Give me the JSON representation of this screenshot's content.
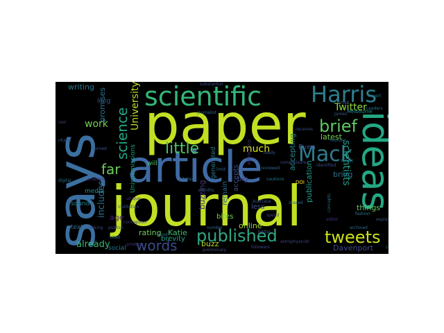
{
  "wordcloud": {
    "words": [
      {
        "text": "paper",
        "color": "#c2df23"
      },
      {
        "text": "says",
        "color": "#3b6fa0"
      },
      {
        "text": "journal",
        "color": "#c2df23"
      },
      {
        "text": "article",
        "color": "#3f6aa5"
      },
      {
        "text": "ideas",
        "color": "#23a884"
      },
      {
        "text": "scientific",
        "color": "#34b679"
      },
      {
        "text": "Harris",
        "color": "#2c7f8e"
      },
      {
        "text": "Mack",
        "color": "#2f7b8d"
      },
      {
        "text": "published",
        "color": "#2fa784"
      },
      {
        "text": "tweets",
        "color": "#cde11d"
      },
      {
        "text": "brief",
        "color": "#5ec962"
      },
      {
        "text": "little",
        "color": "#4fc369"
      },
      {
        "text": "words",
        "color": "#3a4b8b"
      },
      {
        "text": "science",
        "color": "#22a785"
      },
      {
        "text": "far",
        "color": "#6ccd5a"
      },
      {
        "text": "Twitter",
        "color": "#8fd744"
      },
      {
        "text": "scientists",
        "color": "#1f9f88"
      },
      {
        "text": "University",
        "color": "#b8de29"
      },
      {
        "text": "much",
        "color": "#d8e219"
      },
      {
        "text": "work",
        "color": "#74d055"
      },
      {
        "text": "promises",
        "color": "#2c728e"
      },
      {
        "text": "includes",
        "color": "#2d708e"
      },
      {
        "text": "already",
        "color": "#35b779"
      },
      {
        "text": "rating",
        "color": "#6ece58"
      },
      {
        "text": "Katie",
        "color": "#42be71"
      },
      {
        "text": "writing",
        "color": "#2a788e"
      },
      {
        "text": "Davenport",
        "color": "#3e4a89"
      },
      {
        "text": "publication",
        "color": "#1e9b8a"
      },
      {
        "text": "things",
        "color": "#5ec962"
      },
      {
        "text": "accepting",
        "color": "#24868e"
      },
      {
        "text": "latest",
        "color": "#7ad151"
      },
      {
        "text": "Even",
        "color": "#3c4f8a"
      },
      {
        "text": "online",
        "color": "#a5db36"
      },
      {
        "text": "less",
        "color": "#39568c"
      },
      {
        "text": "bring",
        "color": "#2c718e"
      },
      {
        "text": "age",
        "color": "#482878"
      },
      {
        "text": "buzz",
        "color": "#b5de2b"
      },
      {
        "text": "brevity",
        "color": "#20a486"
      },
      {
        "text": "bites",
        "color": "#75d054"
      },
      {
        "text": "buzzing",
        "color": "#443983"
      },
      {
        "text": "remain",
        "color": "#2e6e8e"
      },
      {
        "text": "accepts",
        "color": "#3d4d8a"
      },
      {
        "text": "big",
        "color": "#414487"
      },
      {
        "text": "generated",
        "color": "#287d8e"
      },
      {
        "text": "social",
        "color": "#2a768e"
      },
      {
        "text": "texts",
        "color": "#2f6b8e"
      },
      {
        "text": "sound",
        "color": "#25858e"
      },
      {
        "text": "Unisubmissions",
        "color": "#1fa088"
      },
      {
        "text": "will",
        "color": "#4ac16d"
      },
      {
        "text": "media",
        "color": "#218e8d"
      },
      {
        "text": "long",
        "color": "#3b528b"
      },
      {
        "text": "astronomy",
        "color": "#472d7b"
      },
      {
        "text": "DOI",
        "color": "#fde725"
      },
      {
        "text": "Melbourne",
        "color": "#21918c"
      },
      {
        "text": "limit",
        "color": "#31688e"
      },
      {
        "text": "cautions",
        "color": "#2b758e"
      },
      {
        "text": "Good",
        "color": "#2d708e"
      },
      {
        "text": "followers",
        "color": "#3f4889"
      },
      {
        "text": "editor",
        "color": "#46337e"
      },
      {
        "text": "number",
        "color": "#33638d"
      },
      {
        "text": "real",
        "color": "#443a83"
      },
      {
        "text": "object",
        "color": "#3b518b"
      },
      {
        "text": "digital",
        "color": "#2e6f8e"
      },
      {
        "text": "publish",
        "color": "#3e4c8a"
      },
      {
        "text": "check",
        "color": "#31688e"
      },
      {
        "text": "archived",
        "color": "#2f6c8e"
      },
      {
        "text": "receives",
        "color": "#3b528b"
      },
      {
        "text": "concepts",
        "color": "#2e6d8e"
      },
      {
        "text": "unique",
        "color": "#453882"
      },
      {
        "text": "turned",
        "color": "#39568c"
      },
      {
        "text": "ranking",
        "color": "#3e4a89"
      },
      {
        "text": "cited",
        "color": "#2b748e"
      },
      {
        "text": "enables",
        "color": "#453781"
      },
      {
        "text": "spend",
        "color": "#424086"
      },
      {
        "text": "better",
        "color": "#38588c"
      },
      {
        "text": "latest",
        "color": "#26828e"
      },
      {
        "text": "chief",
        "color": "#3d4e8a"
      },
      {
        "text": "fashion",
        "color": "#2a778e"
      },
      {
        "text": "expert",
        "color": "#2d718e"
      },
      {
        "text": "months",
        "color": "#35608d"
      },
      {
        "text": "journalist",
        "color": "#2c728e"
      },
      {
        "text": "Australia",
        "color": "#3a548c"
      },
      {
        "text": "astrophysicist",
        "color": "#414287"
      },
      {
        "text": "preliminary",
        "color": "#3c4f8a"
      },
      {
        "text": "substantial",
        "color": "#3f4889"
      },
      {
        "text": "reviewed",
        "color": "#33638d"
      },
      {
        "text": "comparisons",
        "color": "#3d4e8a"
      },
      {
        "text": "ready",
        "color": "#38598c"
      },
      {
        "text": "James",
        "color": "#2a768e"
      },
      {
        "text": "founder",
        "color": "#2c718e"
      },
      {
        "text": "Leaders",
        "color": "#463480"
      },
      {
        "text": "produce",
        "color": "#2e6e8e"
      },
      {
        "text": "pitched",
        "color": "#3a538b"
      },
      {
        "text": "explains",
        "color": "#434085"
      },
      {
        "text": "conception",
        "color": "#39558c"
      },
      {
        "text": "institution",
        "color": "#3d4e8a"
      },
      {
        "text": "identified",
        "color": "#33638d"
      },
      {
        "text": "shared",
        "color": "#3f4889"
      }
    ]
  }
}
